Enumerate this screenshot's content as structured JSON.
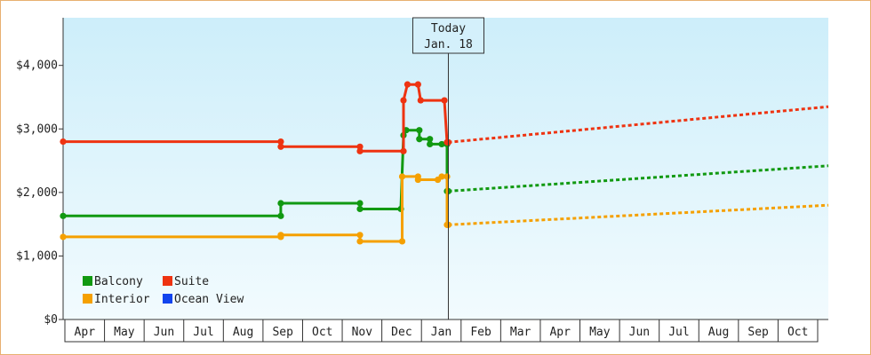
{
  "chart_data": {
    "type": "line",
    "ylim": [
      0,
      4750
    ],
    "y_ticks": [
      0,
      1000,
      2000,
      3000,
      4000
    ],
    "y_tick_labels": [
      "$0",
      "$1,000",
      "$2,000",
      "$3,000",
      "$4,000"
    ],
    "x_start": "2023-04-01",
    "x_end": "2024-11-01",
    "month_labels": [
      "Apr",
      "May",
      "Jun",
      "Jul",
      "Aug",
      "Sep",
      "Oct",
      "Nov",
      "Dec",
      "Jan",
      "Feb",
      "Mar",
      "Apr",
      "May",
      "Jun",
      "Jul",
      "Aug",
      "Sep",
      "Oct"
    ],
    "today": {
      "date": "2024-01-18",
      "label_line1": "Today",
      "label_line2": "Jan. 18"
    },
    "grid": false,
    "legend_position": "bottom-left",
    "series": [
      {
        "name": "Balcony",
        "color": "#119911",
        "history": [
          [
            "2023-04-01",
            1630
          ],
          [
            "2023-09-13",
            1630
          ],
          [
            "2023-09-13",
            1830
          ],
          [
            "2023-11-12",
            1830
          ],
          [
            "2023-11-12",
            1740
          ],
          [
            "2023-12-13",
            1740
          ],
          [
            "2023-12-15",
            2900
          ],
          [
            "2023-12-17",
            2980
          ],
          [
            "2023-12-27",
            2980
          ],
          [
            "2023-12-27",
            2840
          ],
          [
            "2024-01-04",
            2840
          ],
          [
            "2024-01-04",
            2760
          ],
          [
            "2024-01-13",
            2760
          ],
          [
            "2024-01-17",
            2760
          ],
          [
            "2024-01-17",
            2020
          ],
          [
            "2024-01-18",
            2020
          ]
        ],
        "forecast": [
          [
            "2024-01-18",
            2020
          ],
          [
            "2024-11-01",
            2420
          ]
        ]
      },
      {
        "name": "Suite",
        "color": "#ee3311",
        "history": [
          [
            "2023-04-01",
            2800
          ],
          [
            "2023-09-13",
            2800
          ],
          [
            "2023-09-13",
            2720
          ],
          [
            "2023-11-12",
            2720
          ],
          [
            "2023-11-12",
            2650
          ],
          [
            "2023-12-15",
            2650
          ],
          [
            "2023-12-15",
            3450
          ],
          [
            "2023-12-18",
            3700
          ],
          [
            "2023-12-26",
            3700
          ],
          [
            "2023-12-28",
            3450
          ],
          [
            "2024-01-15",
            3450
          ],
          [
            "2024-01-17",
            2790
          ],
          [
            "2024-01-18",
            2790
          ]
        ],
        "forecast": [
          [
            "2024-01-18",
            2790
          ],
          [
            "2024-11-01",
            3350
          ]
        ]
      },
      {
        "name": "Interior",
        "color": "#f5a000",
        "history": [
          [
            "2023-04-01",
            1300
          ],
          [
            "2023-09-13",
            1300
          ],
          [
            "2023-09-13",
            1330
          ],
          [
            "2023-11-12",
            1330
          ],
          [
            "2023-11-12",
            1230
          ],
          [
            "2023-12-14",
            1230
          ],
          [
            "2023-12-14",
            2250
          ],
          [
            "2023-12-26",
            2250
          ],
          [
            "2023-12-26",
            2200
          ],
          [
            "2024-01-10",
            2200
          ],
          [
            "2024-01-13",
            2250
          ],
          [
            "2024-01-17",
            2250
          ],
          [
            "2024-01-17",
            1490
          ],
          [
            "2024-01-18",
            1490
          ]
        ],
        "forecast": [
          [
            "2024-01-18",
            1490
          ],
          [
            "2024-11-01",
            1800
          ]
        ]
      },
      {
        "name": "Ocean View",
        "color": "#1144ee",
        "history": [],
        "forecast": []
      }
    ]
  }
}
